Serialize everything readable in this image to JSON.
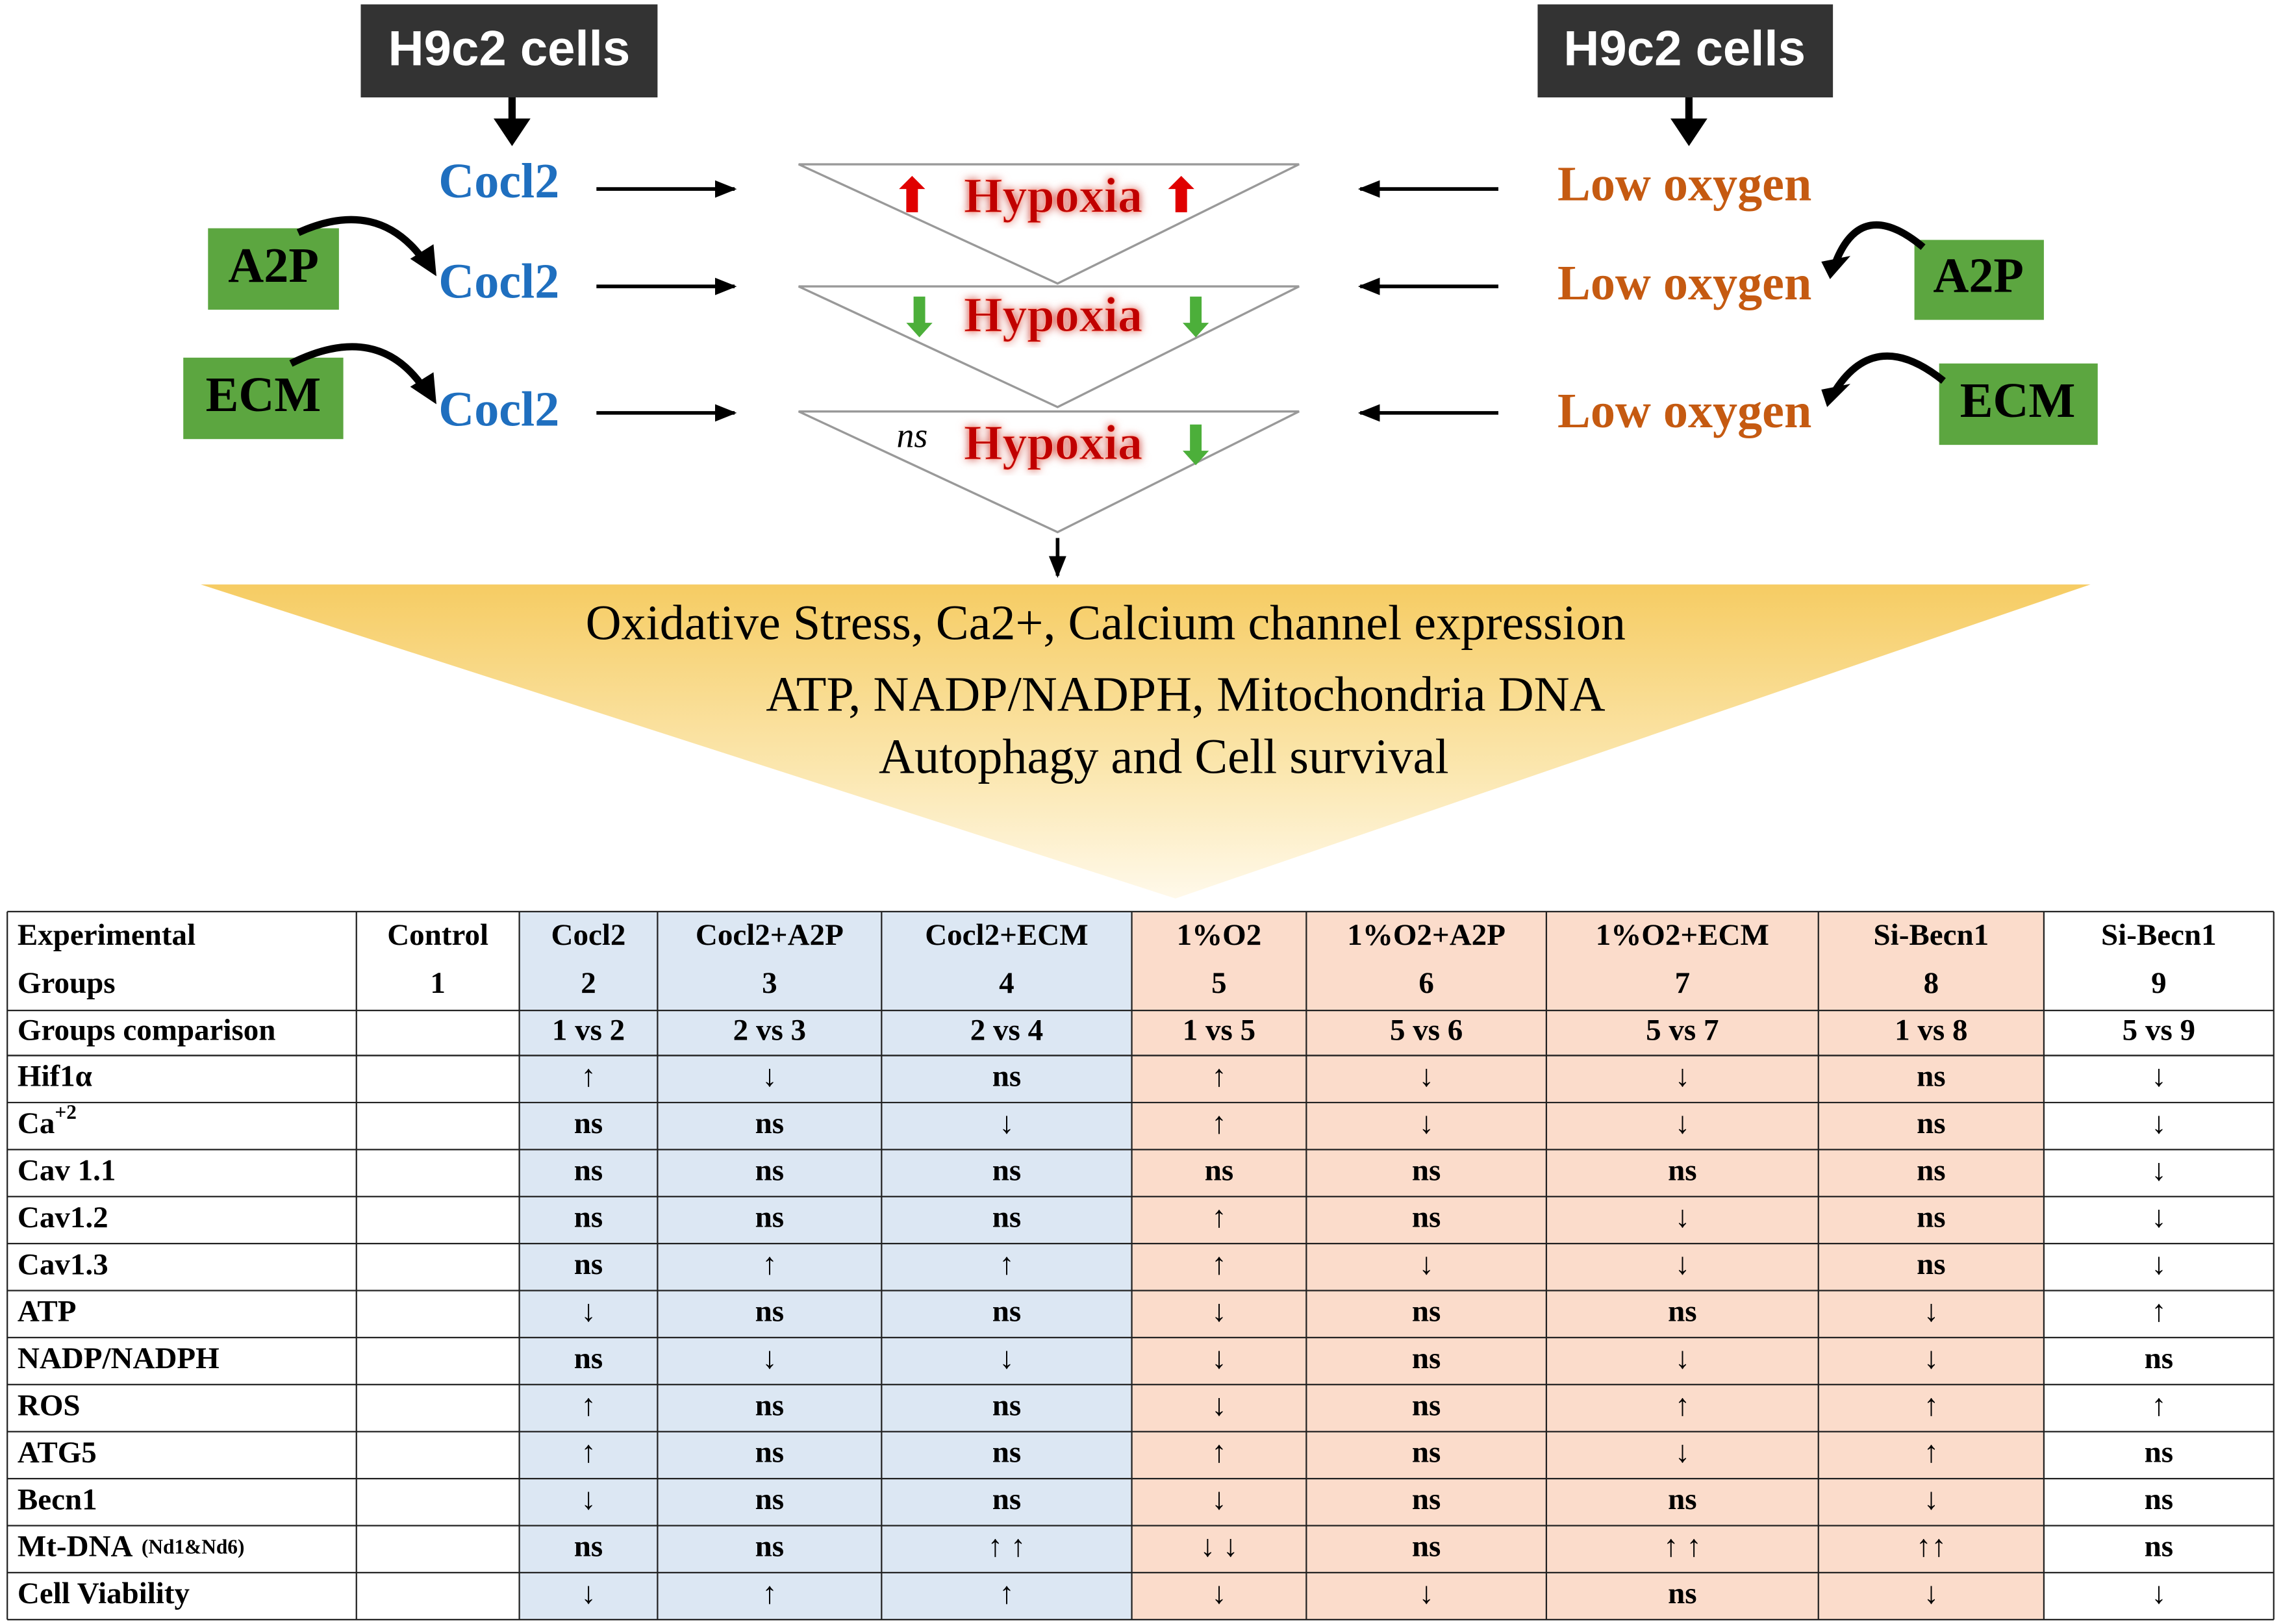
{
  "diagram": {
    "left": {
      "source": "H9c2 cells",
      "agents": [
        "Cocl2",
        "Cocl2",
        "Cocl2"
      ],
      "modifiers": [
        "A2P",
        "ECM"
      ]
    },
    "right": {
      "source": "H9c2 cells",
      "agents": [
        "Low oxygen",
        "Low oxygen",
        "Low oxygen"
      ],
      "modifiers": [
        "A2P",
        "ECM"
      ]
    },
    "outcomes": [
      "Hypoxia",
      "Hypoxia",
      "Hypoxia"
    ],
    "ns_label": "ns",
    "summary": [
      "Oxidative Stress, Ca2+, Calcium channel expression",
      "ATP, NADP/NADPH, Mitochondria DNA",
      "Autophagy and Cell survival"
    ]
  },
  "table": {
    "corner": [
      "Experimental",
      "Groups"
    ],
    "groups": [
      {
        "name": "Control",
        "number": "1"
      },
      {
        "name": "Cocl2",
        "number": "2"
      },
      {
        "name": "Cocl2+A2P",
        "number": "3"
      },
      {
        "name": "Cocl2+ECM",
        "number": "4"
      },
      {
        "name": "1%O2",
        "number": "5"
      },
      {
        "name": "1%O2+A2P",
        "number": "6"
      },
      {
        "name": "1%O2+ECM",
        "number": "7"
      },
      {
        "name": "Si-Becn1",
        "number": "8"
      },
      {
        "name": "Si-Becn1",
        "number": "9"
      }
    ],
    "comparison_label": "Groups comparison",
    "comparisons": [
      "1 vs 2",
      "2 vs 3",
      "2 vs 4",
      "1 vs 5",
      "5 vs 6",
      "5 vs 7",
      "1 vs 8",
      "5 vs 9"
    ],
    "rows": [
      {
        "label": "Hif1α",
        "cells": [
          "↑",
          "↓",
          "ns",
          "↑",
          "↓",
          "↓",
          "ns",
          "↓"
        ]
      },
      {
        "label": "Ca",
        "sup": "+2",
        "cells": [
          "ns",
          "ns",
          "↓",
          "↑",
          "↓",
          "↓",
          "ns",
          "↓"
        ]
      },
      {
        "label": "Cav 1.1",
        "cells": [
          "ns",
          "ns",
          "ns",
          "ns",
          "ns",
          "ns",
          "ns",
          "↓"
        ]
      },
      {
        "label": "Cav1.2",
        "cells": [
          "ns",
          "ns",
          "ns",
          "↑",
          "ns",
          "↓",
          "ns",
          "↓"
        ]
      },
      {
        "label": "Cav1.3",
        "cells": [
          "ns",
          "↑",
          "↑",
          "↑",
          "↓",
          "↓",
          "ns",
          "↓"
        ]
      },
      {
        "label": "ATP",
        "cells": [
          "↓",
          "ns",
          "ns",
          "↓",
          "ns",
          "ns",
          "↓",
          "↑"
        ]
      },
      {
        "label": "NADP/NADPH",
        "cells": [
          "ns",
          "↓",
          "↓",
          "↓",
          "ns",
          "↓",
          "↓",
          "ns"
        ]
      },
      {
        "label": "ROS",
        "cells": [
          "↑",
          "ns",
          "ns",
          "↓",
          "ns",
          "↑",
          "↑",
          "↑"
        ]
      },
      {
        "label": "ATG5",
        "cells": [
          "↑",
          "ns",
          "ns",
          "↑",
          "ns",
          "↓",
          "↑",
          "ns"
        ]
      },
      {
        "label": "Becn1",
        "cells": [
          "↓",
          "ns",
          "ns",
          "↓",
          "ns",
          "ns",
          "↓",
          "ns"
        ]
      },
      {
        "label": "Mt-DNA",
        "note": "(Nd1&Nd6)",
        "cells": [
          "ns",
          "ns",
          "↑ ↑",
          "↓ ↓",
          "ns",
          "↑ ↑",
          "↑↑",
          "ns"
        ]
      },
      {
        "label": "Cell Viability",
        "cells": [
          "↓",
          "↑",
          "↑",
          "↓",
          "↓",
          "ns",
          "↓",
          "↓"
        ]
      }
    ]
  }
}
